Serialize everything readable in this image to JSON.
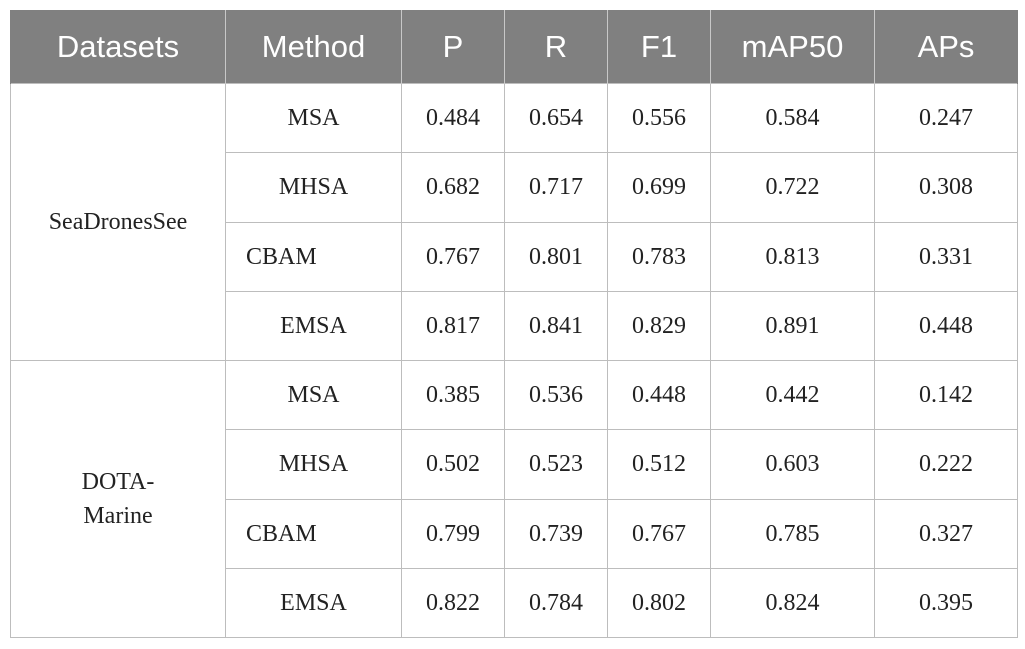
{
  "headers": [
    "Datasets",
    "Method",
    "P",
    "R",
    "F1",
    "mAP50",
    "APs"
  ],
  "groups": [
    {
      "dataset": "SeaDronesSee",
      "rows": [
        {
          "method": "MSA",
          "P": "0.484",
          "R": "0.654",
          "F1": "0.556",
          "mAP50": "0.584",
          "APs": "0.247"
        },
        {
          "method": "MHSA",
          "P": "0.682",
          "R": "0.717",
          "F1": "0.699",
          "mAP50": "0.722",
          "APs": "0.308"
        },
        {
          "method": "CBAM",
          "P": "0.767",
          "R": "0.801",
          "F1": "0.783",
          "mAP50": "0.813",
          "APs": "0.331"
        },
        {
          "method": "EMSA",
          "P": "0.817",
          "R": "0.841",
          "F1": "0.829",
          "mAP50": "0.891",
          "APs": "0.448"
        }
      ]
    },
    {
      "dataset": "DOTA-Marine",
      "dataset_lines": [
        "DOTA-",
        "Marine"
      ],
      "rows": [
        {
          "method": "MSA",
          "P": "0.385",
          "R": "0.536",
          "F1": "0.448",
          "mAP50": "0.442",
          "APs": "0.142"
        },
        {
          "method": "MHSA",
          "P": "0.502",
          "R": "0.523",
          "F1": "0.512",
          "mAP50": "0.603",
          "APs": "0.222"
        },
        {
          "method": "CBAM",
          "P": "0.799",
          "R": "0.739",
          "F1": "0.767",
          "mAP50": "0.785",
          "APs": "0.327"
        },
        {
          "method": "EMSA",
          "P": "0.822",
          "R": "0.784",
          "F1": "0.802",
          "mAP50": "0.824",
          "APs": "0.395"
        }
      ]
    }
  ]
}
